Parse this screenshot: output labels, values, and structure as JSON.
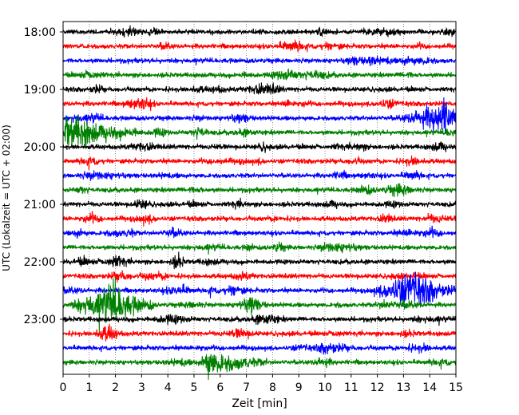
{
  "chart_data": {
    "type": "line",
    "xlabel": "Zeit  [min]",
    "ylabel": "UTC (Lokalzeit = UTC + 02:00)",
    "xlim": [
      0,
      15
    ],
    "x_ticks": [
      "0",
      "1",
      "2",
      "3",
      "4",
      "5",
      "6",
      "7",
      "8",
      "9",
      "10",
      "11",
      "12",
      "13",
      "14",
      "15"
    ],
    "y_ticks": [
      "18:00",
      "19:00",
      "20:00",
      "21:00",
      "22:00",
      "23:00"
    ],
    "grid": "vertical dotted at each minute",
    "trace_minutes": 15,
    "traces_start": "18:00",
    "traces_end": "23:45",
    "trace_colors": [
      "#000000",
      "#ff0000",
      "#0000ff",
      "#008000"
    ],
    "events": [
      {
        "trace": "19:30",
        "from_min": 13.0,
        "to_min": 15.0,
        "peak_min": 14.7,
        "level": 3.4
      },
      {
        "trace": "19:45",
        "from_min": 0.0,
        "to_min": 3.0,
        "peak_min": 0.1,
        "level": 3.0
      },
      {
        "trace": "22:30",
        "from_min": 11.5,
        "to_min": 15.0,
        "peak_min": 13.3,
        "level": 3.4
      },
      {
        "trace": "22:45",
        "from_min": 0.0,
        "to_min": 3.5,
        "peak_min": 2.0,
        "level": 3.6
      },
      {
        "trace": "22:45",
        "from_min": 6.5,
        "to_min": 7.8,
        "peak_min": 7.2,
        "level": 1.3
      },
      {
        "trace": "23:45",
        "from_min": 5.2,
        "to_min": 7.8,
        "peak_min": 5.5,
        "level": 2.4
      }
    ]
  }
}
